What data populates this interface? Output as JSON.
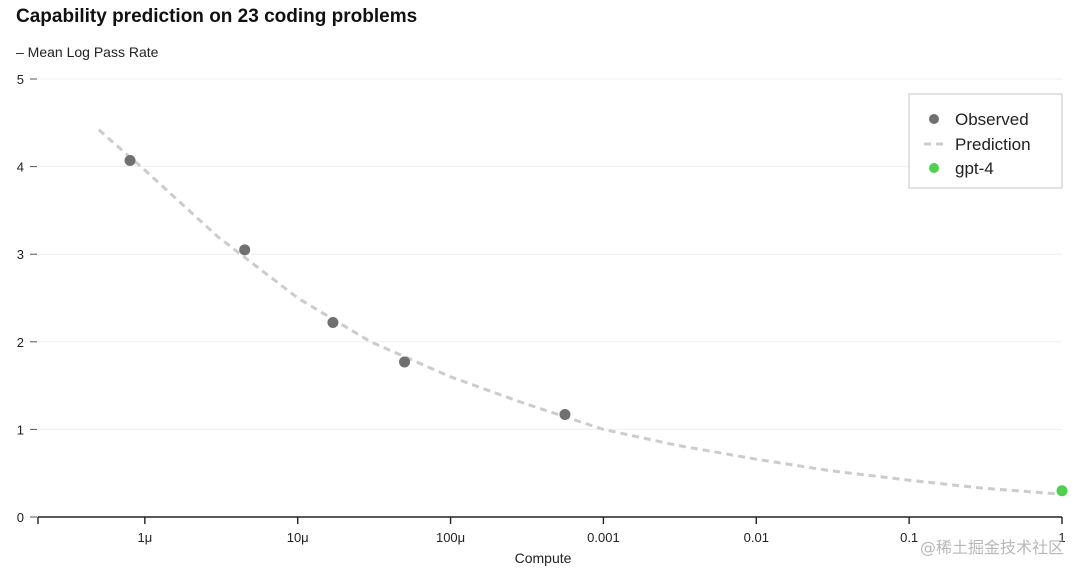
{
  "watermark": "@稀土掘金技术社区",
  "chart_data": {
    "type": "scatter",
    "title": "Capability prediction on 23 coding problems",
    "ylabel": "– Mean Log Pass Rate",
    "xlabel": "Compute",
    "x_scale": "log",
    "xlim": [
      2e-07,
      1
    ],
    "ylim": [
      0,
      5
    ],
    "x_ticks": [
      {
        "value": 1e-06,
        "label": "1μ"
      },
      {
        "value": 1e-05,
        "label": "10μ"
      },
      {
        "value": 0.0001,
        "label": "100μ"
      },
      {
        "value": 0.001,
        "label": "0.001"
      },
      {
        "value": 0.01,
        "label": "0.01"
      },
      {
        "value": 0.1,
        "label": "0.1"
      },
      {
        "value": 1,
        "label": "1"
      }
    ],
    "y_ticks": [
      0,
      1,
      2,
      3,
      4,
      5
    ],
    "grid": "horizontal",
    "legend_position": "top-right",
    "series": [
      {
        "name": "Observed",
        "kind": "scatter",
        "color": "#707070",
        "points": [
          {
            "x": 8e-07,
            "y": 4.07
          },
          {
            "x": 4.5e-06,
            "y": 3.05
          },
          {
            "x": 1.7e-05,
            "y": 2.22
          },
          {
            "x": 5e-05,
            "y": 1.77
          },
          {
            "x": 0.00056,
            "y": 1.17
          }
        ]
      },
      {
        "name": "Prediction",
        "kind": "dashed-line",
        "color": "#cccccc",
        "points": [
          {
            "x": 5e-07,
            "y": 4.42
          },
          {
            "x": 1e-06,
            "y": 3.96
          },
          {
            "x": 3e-06,
            "y": 3.2
          },
          {
            "x": 1e-05,
            "y": 2.5
          },
          {
            "x": 3e-05,
            "y": 2.0
          },
          {
            "x": 0.0001,
            "y": 1.6
          },
          {
            "x": 0.0003,
            "y": 1.3
          },
          {
            "x": 0.001,
            "y": 1.0
          },
          {
            "x": 0.003,
            "y": 0.82
          },
          {
            "x": 0.01,
            "y": 0.66
          },
          {
            "x": 0.03,
            "y": 0.53
          },
          {
            "x": 0.1,
            "y": 0.42
          },
          {
            "x": 0.3,
            "y": 0.33
          },
          {
            "x": 1,
            "y": 0.26
          }
        ]
      },
      {
        "name": "gpt-4",
        "kind": "scatter",
        "color": "#4cd24c",
        "points": [
          {
            "x": 1,
            "y": 0.3
          }
        ]
      }
    ]
  }
}
